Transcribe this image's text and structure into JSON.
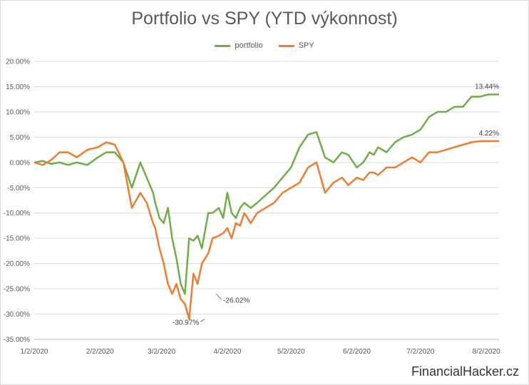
{
  "watermark": "FinancialHacker.cz",
  "chart_data": {
    "type": "line",
    "title": "Portfolio vs SPY (YTD výkonnost)",
    "xlabel": "",
    "ylabel": "",
    "legend_position": "top",
    "grid": true,
    "ylim": [
      -0.35,
      0.2
    ],
    "y_ticks": [
      0.2,
      0.15,
      0.1,
      0.05,
      0.0,
      -0.05,
      -0.1,
      -0.15,
      -0.2,
      -0.25,
      -0.3,
      -0.35
    ],
    "y_tick_labels": [
      "20.00%",
      "15.00%",
      "10.00%",
      "5.00%",
      "0.00%",
      "-5.00%",
      "-10.00%",
      "-15.00%",
      "-20.00%",
      "-25.00%",
      "-30.00%",
      "-35.00%"
    ],
    "x_ticks": [
      "1/2/2020",
      "2/2/2020",
      "3/2/2020",
      "4/2/2020",
      "5/2/2020",
      "6/2/2020",
      "7/2/2020",
      "8/2/2020"
    ],
    "series": [
      {
        "name": "portfolio",
        "color": "#70ad47",
        "x": [
          "2020-01-02",
          "2020-01-06",
          "2020-01-10",
          "2020-01-14",
          "2020-01-18",
          "2020-01-22",
          "2020-01-27",
          "2020-02-01",
          "2020-02-05",
          "2020-02-09",
          "2020-02-13",
          "2020-02-17",
          "2020-02-21",
          "2020-02-24",
          "2020-02-27",
          "2020-02-28",
          "2020-03-01",
          "2020-03-03",
          "2020-03-05",
          "2020-03-07",
          "2020-03-09",
          "2020-03-11",
          "2020-03-13",
          "2020-03-15",
          "2020-03-17",
          "2020-03-19",
          "2020-03-21",
          "2020-03-24",
          "2020-03-26",
          "2020-03-29",
          "2020-03-31",
          "2020-04-02",
          "2020-04-04",
          "2020-04-06",
          "2020-04-08",
          "2020-04-10",
          "2020-04-13",
          "2020-04-16",
          "2020-04-20",
          "2020-04-24",
          "2020-04-28",
          "2020-05-02",
          "2020-05-06",
          "2020-05-10",
          "2020-05-14",
          "2020-05-18",
          "2020-05-22",
          "2020-05-26",
          "2020-05-29",
          "2020-06-02",
          "2020-06-05",
          "2020-06-08",
          "2020-06-10",
          "2020-06-12",
          "2020-06-16",
          "2020-06-20",
          "2020-06-24",
          "2020-06-28",
          "2020-07-02",
          "2020-07-06",
          "2020-07-10",
          "2020-07-14",
          "2020-07-18",
          "2020-07-22",
          "2020-07-26",
          "2020-07-30",
          "2020-08-03",
          "2020-08-06",
          "2020-08-08"
        ],
        "values": [
          0.0,
          0.003,
          -0.003,
          0.0,
          -0.005,
          0.0,
          -0.005,
          0.01,
          0.02,
          0.02,
          0.0,
          -0.05,
          0.0,
          -0.03,
          -0.06,
          -0.08,
          -0.11,
          -0.12,
          -0.09,
          -0.15,
          -0.19,
          -0.24,
          -0.26,
          -0.15,
          -0.155,
          -0.145,
          -0.17,
          -0.1,
          -0.1,
          -0.09,
          -0.11,
          -0.06,
          -0.1,
          -0.11,
          -0.09,
          -0.08,
          -0.09,
          -0.08,
          -0.065,
          -0.05,
          -0.03,
          -0.01,
          0.03,
          0.055,
          0.06,
          0.01,
          0.0,
          0.02,
          0.015,
          -0.01,
          0.0,
          0.02,
          0.015,
          0.03,
          0.02,
          0.04,
          0.05,
          0.055,
          0.065,
          0.09,
          0.1,
          0.1,
          0.11,
          0.11,
          0.13,
          0.13,
          0.1344,
          0.1344,
          0.1344
        ],
        "annotations": [
          {
            "x": "2020-03-27",
            "value": -0.2602,
            "label": "-26.02%"
          },
          {
            "x": "2020-08-08",
            "value": 0.1344,
            "label": "13.44%"
          }
        ]
      },
      {
        "name": "SPY",
        "color": "#ed7d31",
        "x": [
          "2020-01-02",
          "2020-01-06",
          "2020-01-10",
          "2020-01-14",
          "2020-01-18",
          "2020-01-22",
          "2020-01-27",
          "2020-02-01",
          "2020-02-05",
          "2020-02-09",
          "2020-02-13",
          "2020-02-17",
          "2020-02-21",
          "2020-02-24",
          "2020-02-27",
          "2020-02-28",
          "2020-03-01",
          "2020-03-03",
          "2020-03-05",
          "2020-03-07",
          "2020-03-09",
          "2020-03-11",
          "2020-03-13",
          "2020-03-15",
          "2020-03-17",
          "2020-03-19",
          "2020-03-21",
          "2020-03-24",
          "2020-03-26",
          "2020-03-29",
          "2020-03-31",
          "2020-04-02",
          "2020-04-04",
          "2020-04-06",
          "2020-04-08",
          "2020-04-10",
          "2020-04-13",
          "2020-04-16",
          "2020-04-20",
          "2020-04-24",
          "2020-04-28",
          "2020-05-02",
          "2020-05-06",
          "2020-05-10",
          "2020-05-14",
          "2020-05-18",
          "2020-05-22",
          "2020-05-26",
          "2020-05-29",
          "2020-06-02",
          "2020-06-05",
          "2020-06-08",
          "2020-06-10",
          "2020-06-12",
          "2020-06-16",
          "2020-06-20",
          "2020-06-24",
          "2020-06-28",
          "2020-07-02",
          "2020-07-06",
          "2020-07-10",
          "2020-07-14",
          "2020-07-18",
          "2020-07-22",
          "2020-07-26",
          "2020-07-30",
          "2020-08-03",
          "2020-08-06",
          "2020-08-08"
        ],
        "values": [
          0.0,
          -0.005,
          0.005,
          0.02,
          0.02,
          0.01,
          0.025,
          0.03,
          0.04,
          0.035,
          0.0,
          -0.09,
          -0.06,
          -0.08,
          -0.12,
          -0.13,
          -0.17,
          -0.2,
          -0.24,
          -0.26,
          -0.24,
          -0.27,
          -0.28,
          -0.3097,
          -0.22,
          -0.24,
          -0.2,
          -0.18,
          -0.15,
          -0.145,
          -0.14,
          -0.13,
          -0.15,
          -0.12,
          -0.125,
          -0.1,
          -0.12,
          -0.1,
          -0.09,
          -0.08,
          -0.06,
          -0.05,
          -0.04,
          -0.01,
          0.0,
          -0.06,
          -0.04,
          -0.03,
          -0.045,
          -0.03,
          -0.035,
          -0.02,
          -0.02,
          -0.025,
          -0.01,
          -0.01,
          0.0,
          0.01,
          0.0,
          0.02,
          0.02,
          0.025,
          0.03,
          0.035,
          0.04,
          0.042,
          0.0422,
          0.0422,
          0.0422
        ],
        "annotations": [
          {
            "x": "2020-03-23",
            "value": -0.3097,
            "label": "-30.97%"
          },
          {
            "x": "2020-08-08",
            "value": 0.0422,
            "label": "4.22%"
          }
        ]
      }
    ]
  }
}
